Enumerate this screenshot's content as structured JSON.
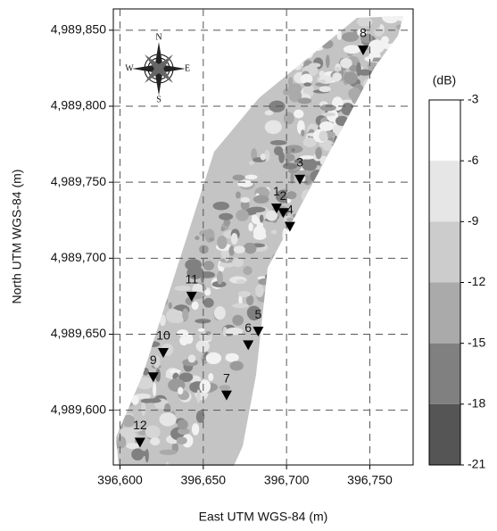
{
  "chart_data": {
    "type": "scatter",
    "xlabel": "East UTM WGS-84 (m)",
    "ylabel": "North UTM WGS-84 (m)",
    "xlim": [
      396596,
      396776
    ],
    "ylim": [
      4989564,
      4989864
    ],
    "xticks": [
      {
        "value": 396600,
        "label": "396,600"
      },
      {
        "value": 396650,
        "label": "396,650"
      },
      {
        "value": 396700,
        "label": "396,700"
      },
      {
        "value": 396750,
        "label": "396,750"
      }
    ],
    "yticks": [
      {
        "value": 4989600,
        "label": "4,989,600"
      },
      {
        "value": 4989650,
        "label": "4,989,650"
      },
      {
        "value": 4989700,
        "label": "4,989,700"
      },
      {
        "value": 4989750,
        "label": "4,989,750"
      },
      {
        "value": 4989800,
        "label": "4,989,800"
      },
      {
        "value": 4989850,
        "label": "4,989,850"
      }
    ],
    "grid": true,
    "series": [
      {
        "color": "#000000",
        "labels": [
          "1",
          "2",
          "3",
          "4",
          "5",
          "6",
          "7",
          "8",
          "9",
          "10",
          "11",
          "12"
        ],
        "x": [
          396694,
          396698,
          396708,
          396702,
          396683,
          396677,
          396664,
          396746,
          396620,
          396626,
          396643,
          396612
        ],
        "values": [
          4989733,
          4989730,
          4989752,
          4989721,
          4989652,
          4989643,
          4989610,
          4989837,
          4989622,
          4989638,
          4989675,
          4989579
        ]
      }
    ],
    "compass_labels": [
      "N",
      "E",
      "S",
      "W"
    ],
    "colorbar": {
      "label": "(dB)",
      "levels": [
        -3,
        -6,
        -9,
        -12,
        -15,
        -18,
        -21
      ],
      "colors": [
        "#ffffff",
        "#e6e6e6",
        "#cccccc",
        "#aaaaaa",
        "#808080",
        "#555555"
      ]
    }
  }
}
